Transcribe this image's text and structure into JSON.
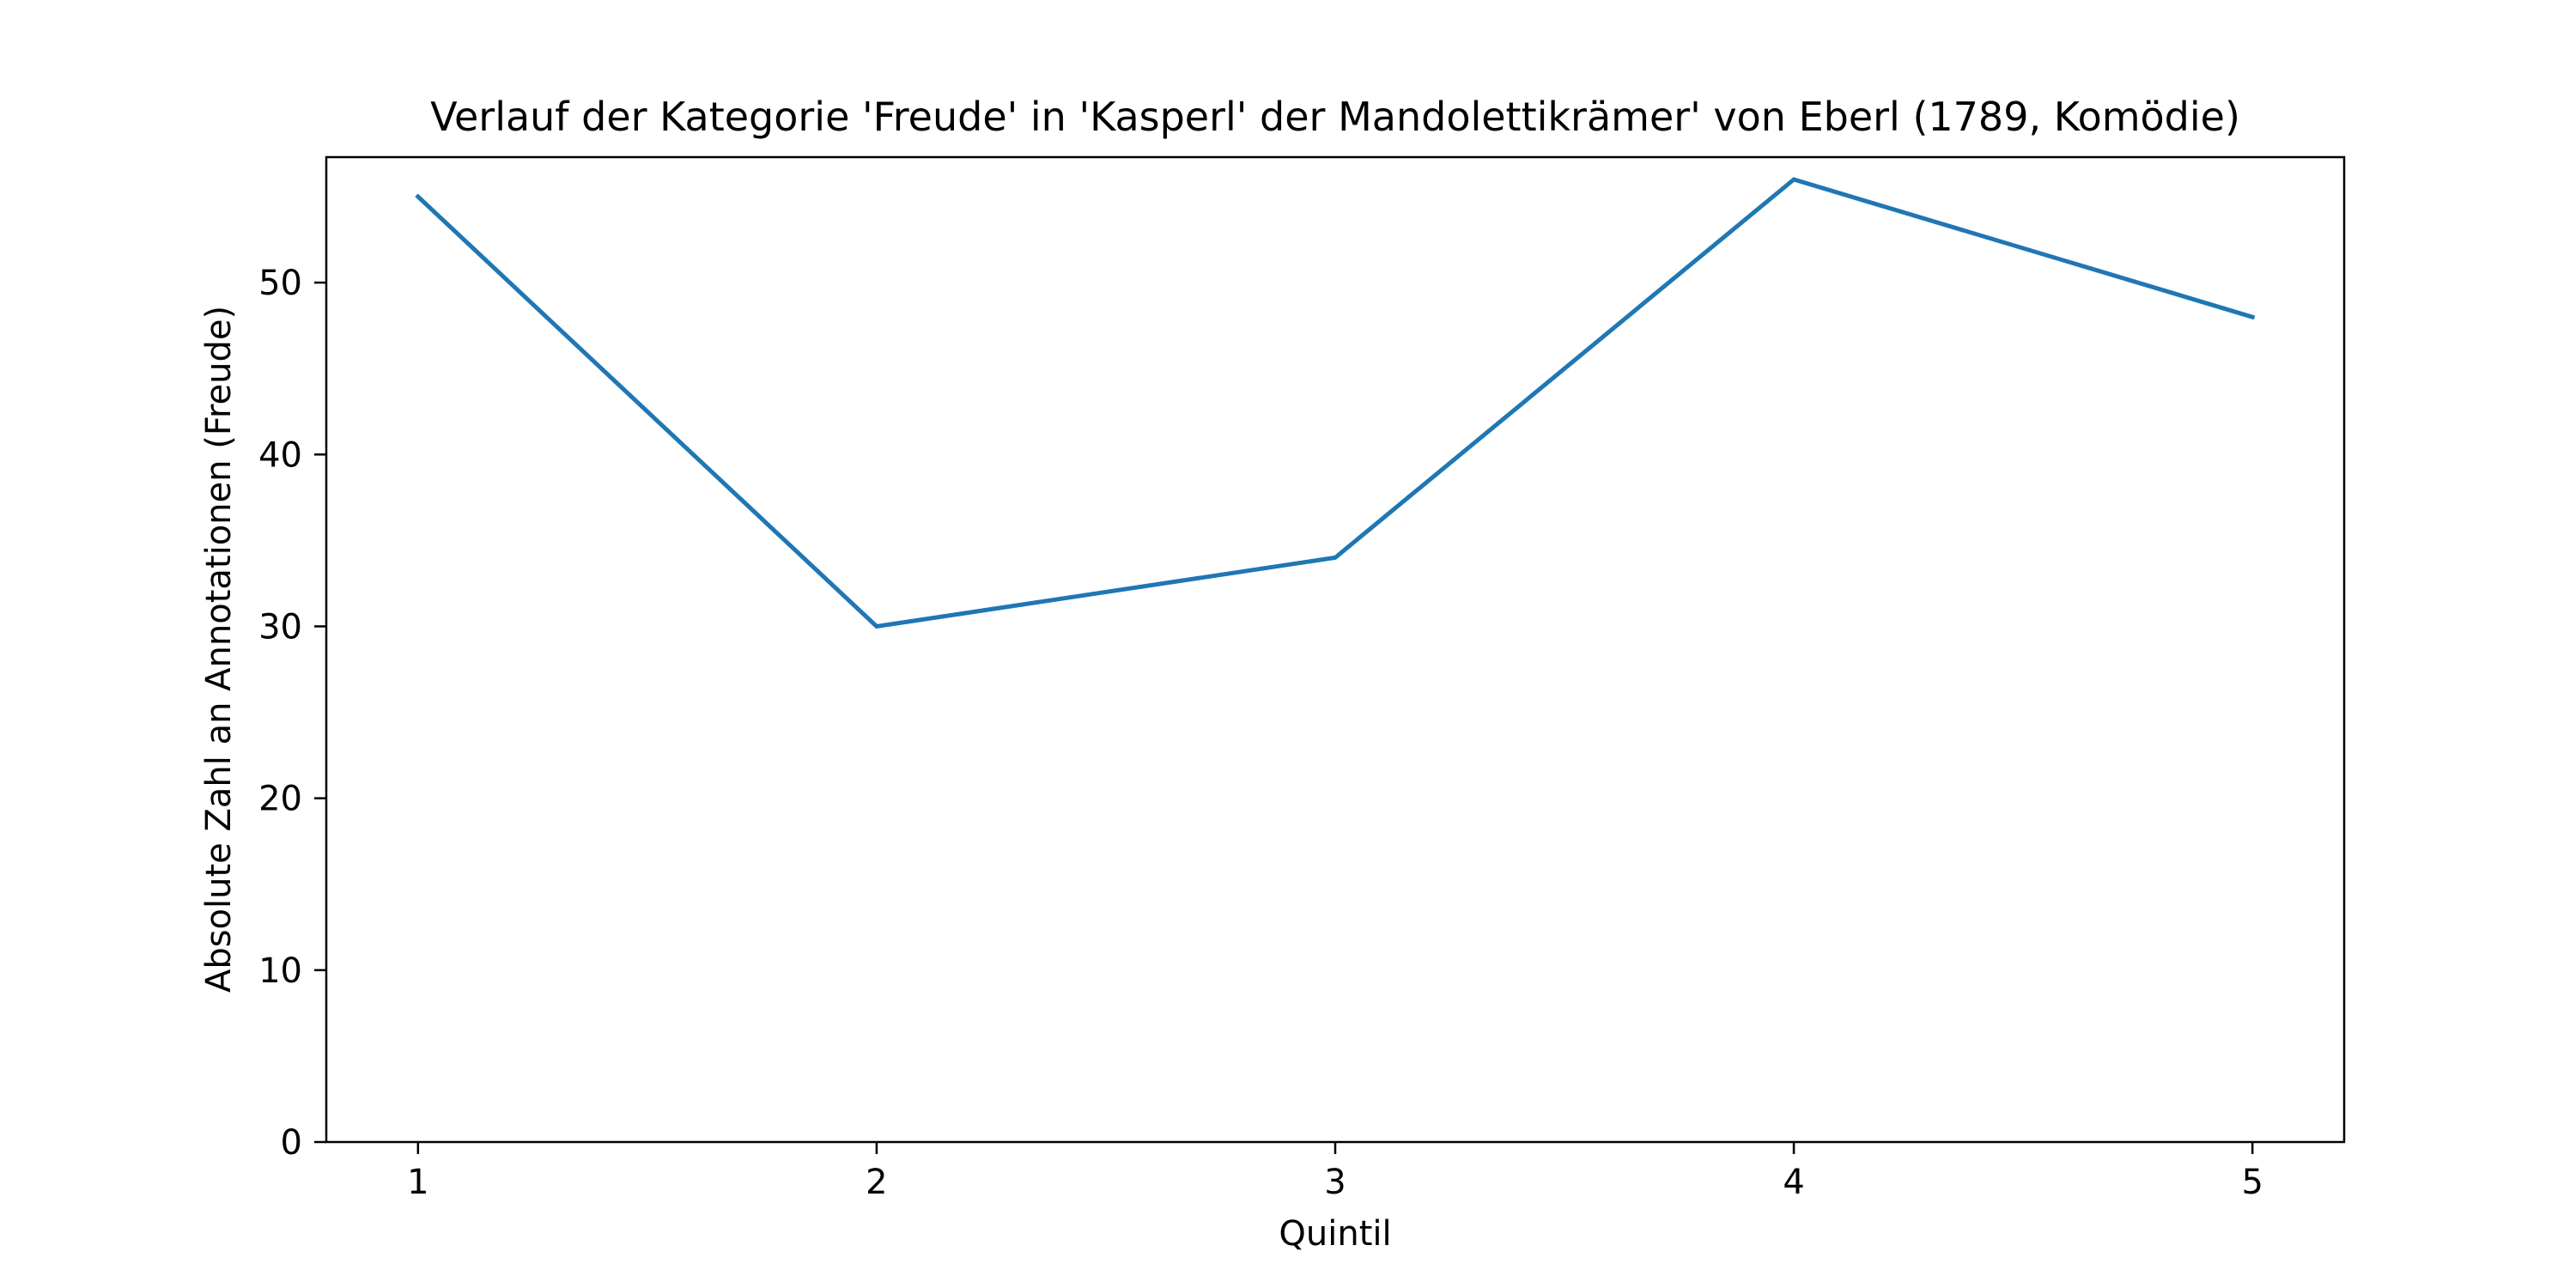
{
  "chart_data": {
    "type": "line",
    "title": "Verlauf der Kategorie 'Freude' in 'Kasperl' der Mandolettikrämer' von Eberl (1789, Komödie)",
    "xlabel": "Quintil",
    "ylabel": "Absolute Zahl an Annotationen (Freude)",
    "x": [
      1,
      2,
      3,
      4,
      5
    ],
    "series": [
      {
        "values": [
          55,
          30,
          34,
          56,
          48
        ]
      }
    ],
    "xlim": [
      0.8,
      5.2
    ],
    "ylim": [
      0,
      57.3
    ],
    "xticks": [
      1,
      2,
      3,
      4,
      5
    ],
    "xtick_labels": [
      "1",
      "2",
      "3",
      "4",
      "5"
    ],
    "yticks": [
      0,
      10,
      20,
      30,
      40,
      50
    ],
    "ytick_labels": [
      "0",
      "10",
      "20",
      "30",
      "40",
      "50"
    ],
    "grid": false,
    "line_color": "#1f77b4"
  }
}
